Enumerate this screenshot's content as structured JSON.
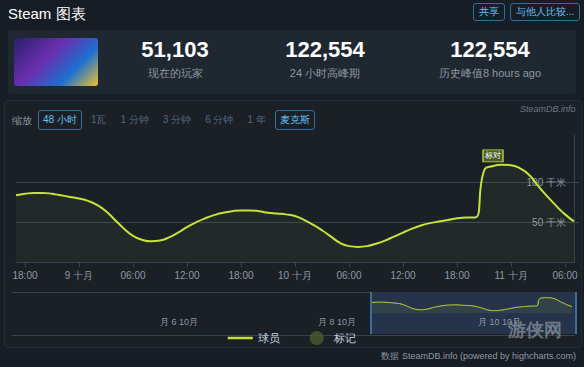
{
  "header": {
    "title": "Steam 图表",
    "buttons": [
      "共享",
      "与他人比较..."
    ]
  },
  "stats": [
    {
      "value": "51,103",
      "label": "现在的玩家"
    },
    {
      "value": "122,554",
      "label": "24 小时高峰期"
    },
    {
      "value": "122,554",
      "label": "历史峰值8 hours ago"
    }
  ],
  "watermark": "SteamDB.info",
  "zoom": {
    "label": "缩放",
    "options": [
      "48 小时",
      "1瓦",
      "1 分钟",
      "3 分钟",
      "6 分钟",
      "1 年",
      "麦克斯"
    ],
    "active": [
      "48 小时",
      "麦克斯"
    ]
  },
  "chart_data": {
    "type": "line",
    "categories": [
      null,
      "18:00",
      null,
      null,
      null,
      null,
      null,
      "9 十月",
      null,
      null,
      null,
      null,
      null,
      "06:00",
      null,
      null,
      null,
      null,
      null,
      "12:00",
      null,
      null,
      null,
      null,
      null,
      "18:00",
      null,
      null,
      null,
      null,
      null,
      "10 十月",
      null,
      null,
      null,
      null,
      null,
      "06:00",
      null,
      null,
      null,
      null,
      null,
      "12:00",
      null,
      null,
      null,
      null,
      null,
      "18:00",
      null,
      null,
      null,
      null,
      null,
      "11 十月",
      null,
      null,
      null,
      null,
      null,
      "06:00",
      null
    ],
    "series": [
      {
        "name": "球员",
        "color": "#c5e33b",
        "values": [
          84000,
          86000,
          87000,
          87000,
          86000,
          84000,
          82000,
          80000,
          77000,
          72000,
          64000,
          53000,
          42000,
          33000,
          28000,
          26000,
          27000,
          31000,
          37000,
          44000,
          50000,
          55000,
          59000,
          62000,
          64000,
          65000,
          65000,
          64000,
          62000,
          61000,
          60000,
          58000,
          53000,
          47000,
          40000,
          32000,
          24000,
          20000,
          19000,
          20000,
          23000,
          27000,
          32000,
          37000,
          42000,
          46000,
          49000,
          51000,
          53000,
          55000,
          56000,
          56000,
          115000,
          121000,
          122554,
          122000,
          118000,
          110000,
          96000,
          83000,
          71000,
          60000,
          51103
        ]
      }
    ],
    "markers": {
      "name": "标记",
      "color": "#4b5d2c",
      "items": [
        {
          "index": 53,
          "label": "标对"
        }
      ]
    },
    "ylim": [
      0,
      160000
    ],
    "yticks": [
      {
        "value": 50000,
        "label": "50 千米"
      },
      {
        "value": 100000,
        "label": "100 千米"
      }
    ],
    "grid": true,
    "legend": "bottom"
  },
  "navigator": {
    "labels": [
      "月 6 10月",
      "月 8 10月",
      "月 10 10月"
    ]
  },
  "credit": "数据 SteamDB.info (powered by highcharts.com)",
  "logo": "游侠网"
}
